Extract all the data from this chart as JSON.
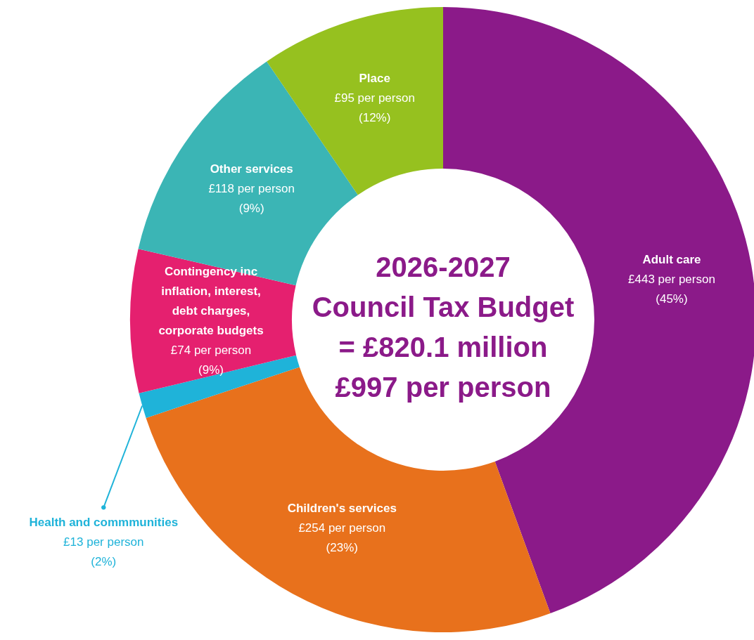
{
  "chart_data": {
    "type": "donut",
    "title": "2026-2027",
    "subtitle": "Council Tax Budget",
    "annotations": [
      "= £820.1 million",
      "£997 per person"
    ],
    "categories": [
      "Adult care",
      "Children's services",
      "Health and commmunities",
      "Contingency inc inflation, interest, debt charges, corporate budgets",
      "Other services",
      "Place"
    ],
    "values": [
      443,
      254,
      13,
      74,
      118,
      95
    ],
    "value_labels": [
      "£443 per person\n(45%)",
      "£254 per person\n(23%)",
      "£13 per person\n(2%)",
      "£74 per person\n(9%)",
      "£118 per person\n(9%)",
      "£95 per person\n(12%)"
    ],
    "colors": [
      "#8b1a89",
      "#e8711c",
      "#1fb3d9",
      "#e5206f",
      "#3bb5b5",
      "#96c11f"
    ]
  }
}
